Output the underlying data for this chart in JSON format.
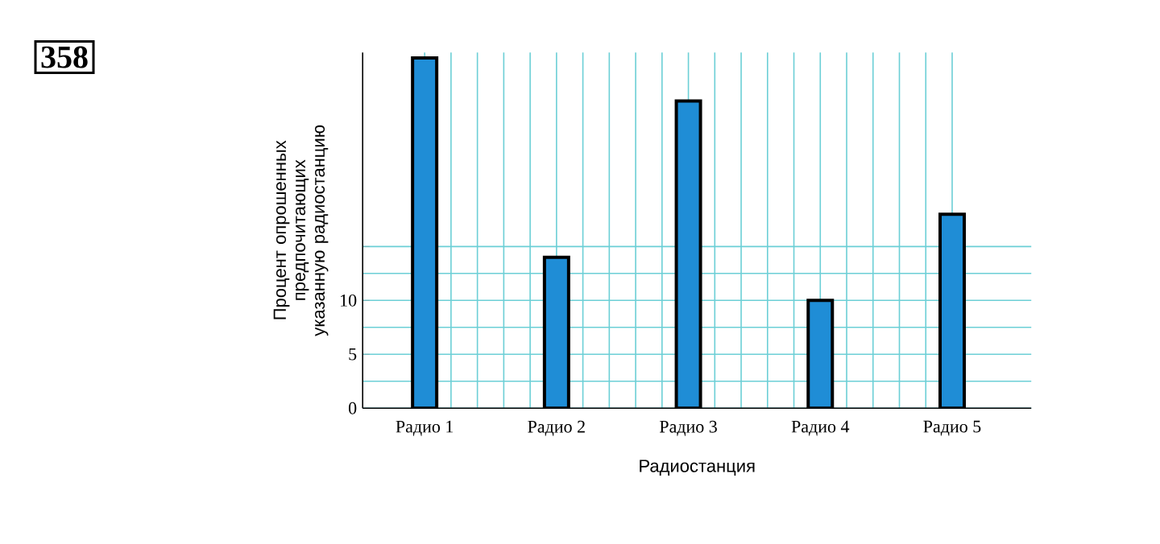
{
  "chart_data": {
    "type": "bar",
    "title": "358",
    "categories": [
      "Радио 1",
      "Радио 2",
      "Радио 3",
      "Радио 4",
      "Радио 5"
    ],
    "values": [
      32.5,
      14,
      28.5,
      10,
      18
    ],
    "color": "#1f8dd6",
    "xlabel": "Радиостанция",
    "ylabel": "Процент опрошенных предпочитающих указанную радиостанцию",
    "ylim": [
      0,
      33
    ],
    "yticks": [
      0,
      5,
      10,
      {
        "value": 15,
        "label": null
      }
    ],
    "grid": true
  }
}
